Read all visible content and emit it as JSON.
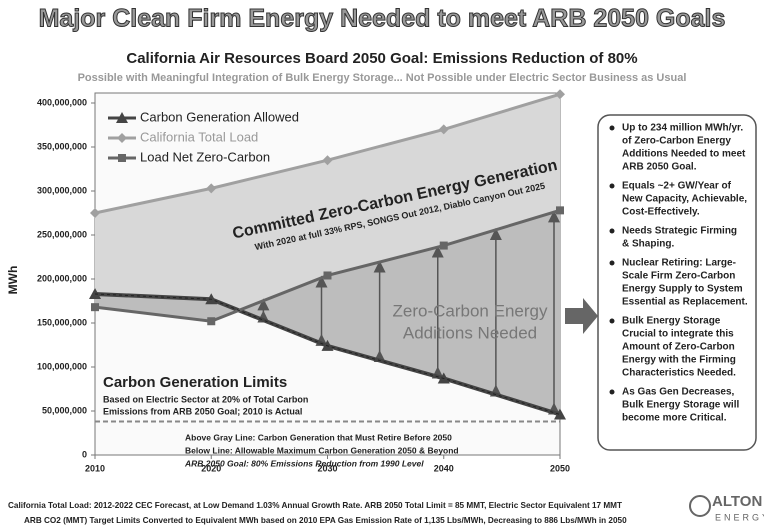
{
  "chart_data": {
    "type": "line",
    "title": "Major Clean Firm Energy Needed to meet ARB 2050 Goals",
    "subtitle": "California Air Resources Board 2050 Goal: Emissions Reduction of 80%",
    "tagline": "Possible with Meaningful Integration of Bulk Energy Storage... Not Possible under Electric Sector Business as Usual",
    "y_label": "MWh",
    "x": [
      2010,
      2020,
      2030,
      2040,
      2050
    ],
    "series": [
      {
        "name": "Carbon Generation Allowed",
        "color": "#444444",
        "values": [
          183000000,
          177000000,
          124000000,
          87000000,
          46000000
        ]
      },
      {
        "name": "California Total Load",
        "color": "#a0a0a0",
        "values": [
          275000000,
          303000000,
          335000000,
          370000000,
          410000000
        ]
      },
      {
        "name": "Load Net Zero-Carbon",
        "color": "#666666",
        "values": [
          168000000,
          152000000,
          204000000,
          238000000,
          278000000
        ]
      }
    ],
    "gray_line": 38000000,
    "xlim": [
      2010,
      2050
    ],
    "xticks": [
      2010,
      2020,
      2030,
      2040,
      2050
    ],
    "ylim": [
      0,
      400000000
    ],
    "yticks": [
      0,
      {
        "value": 50000000,
        "label": "50,000,000"
      },
      {
        "value": 100000000,
        "label": "100,000,000"
      },
      {
        "value": 150000000,
        "label": "150,000,000"
      },
      {
        "value": 200000000,
        "label": "200,000,000"
      },
      {
        "value": 250000000,
        "label": "250,000,000"
      },
      {
        "value": 300000000,
        "label": "300,000,000"
      },
      {
        "value": 350000000,
        "label": "350,000,000"
      },
      {
        "value": 400000000,
        "label": "400,000,000"
      }
    ],
    "annotations": {
      "committed": "Committed Zero-Carbon Energy Generation",
      "committed_note": "With 2020 at full 33% RPS, SONGS Out 2012, Diablo Canyon Out 2025",
      "additions": [
        "Zero-Carbon Energy",
        "Additions Needed"
      ],
      "limits": "Carbon Generation Limits",
      "limits_note": [
        "Based on Electric Sector at 20% of Total Carbon",
        "Emissions from ARB 2050 Goal; 2010 is Actual"
      ],
      "gray_line_notes": [
        "Above Gray Line: Carbon Generation that Must Retire Before 2050",
        "Below Line: Allowable Maximum Carbon Generation 2050 & Beyond",
        "ARB 2050 Goal: 80% Emissions Reduction from 1990 Level"
      ]
    },
    "bullets": [
      [
        "Up to 234 million MWh/yr.",
        "of Zero-Carbon Energy",
        "Additions Needed to meet",
        "ARB 2050 Goal."
      ],
      [
        "Equals ~2+ GW/Year of",
        "New Capacity, Achievable,",
        "Cost-Effectively."
      ],
      [
        "Needs Strategic Firming",
        "& Shaping."
      ],
      [
        "Nuclear Retiring: Large-",
        "Scale Firm Zero-Carbon",
        "Energy Supply to System",
        "Essential as Replacement."
      ],
      [
        "Bulk Energy Storage",
        "Crucial to integrate this",
        "Amount of Zero-Carbon",
        "Energy with the Firming",
        "Characteristics Needed."
      ],
      [
        "As Gas Gen Decreases,",
        "Bulk Energy Storage will",
        "become more Critical."
      ]
    ],
    "footnotes": [
      "California Total Load: 2012-2022 CEC Forecast, at Low Demand 1.03% Annual Growth Rate. ARB 2050 Total Limit = 85 MMT, Electric Sector Equivalent 17 MMT",
      "ARB CO2 (MMT) Target Limits Converted to Equivalent MWh based on 2010 EPA Gas Emission Rate of 1,135 Lbs/MWh, Decreasing to 886 Lbs/MWh in 2050"
    ],
    "logo": [
      "ALTON",
      "ENERGY"
    ]
  }
}
